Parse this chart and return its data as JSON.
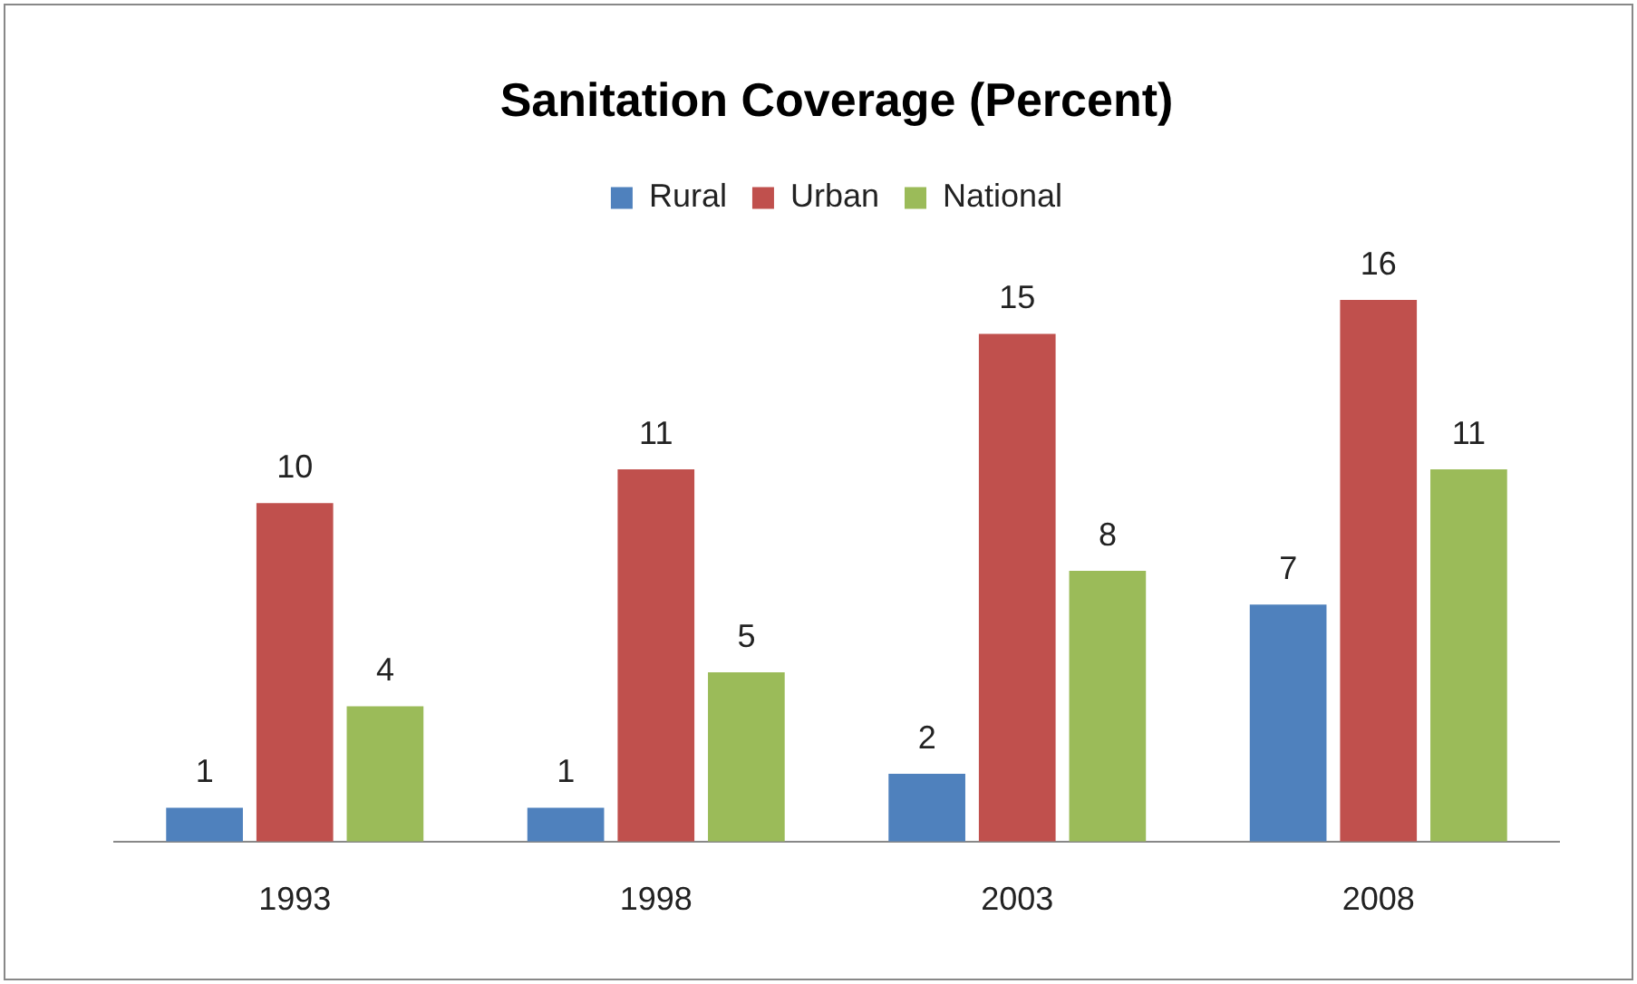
{
  "chart_data": {
    "type": "bar",
    "title": "Sanitation Coverage (Percent)",
    "categories": [
      "1993",
      "1998",
      "2003",
      "2008"
    ],
    "series": [
      {
        "name": "Rural",
        "color": "#4f81bd",
        "values": [
          1,
          1,
          2,
          7
        ]
      },
      {
        "name": "Urban",
        "color": "#c0504d",
        "values": [
          10,
          11,
          15,
          16
        ]
      },
      {
        "name": "National",
        "color": "#9bbb59",
        "values": [
          4,
          5,
          8,
          11
        ]
      }
    ],
    "data_labels": true,
    "legend": "top",
    "grid": false
  }
}
